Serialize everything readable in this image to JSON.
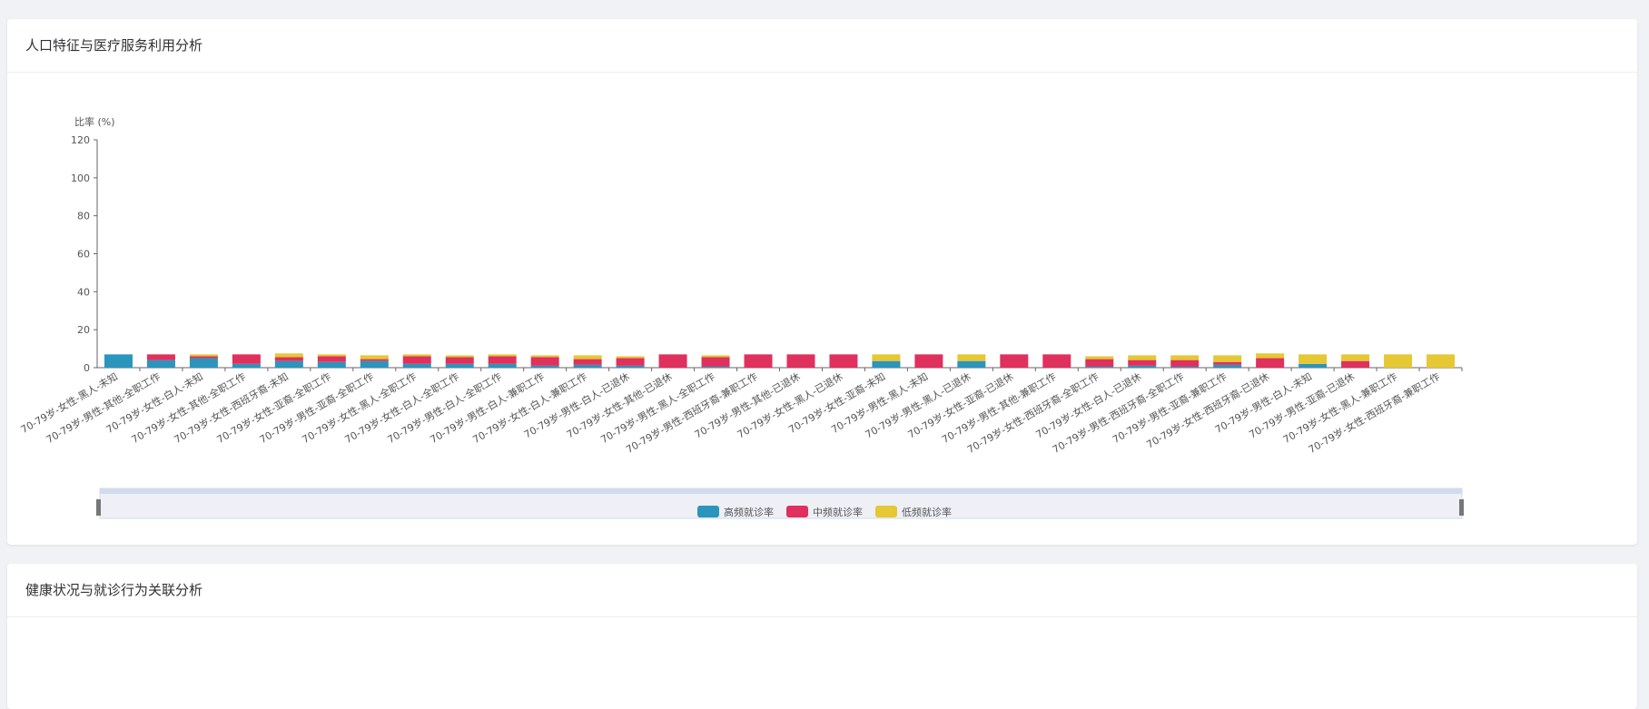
{
  "panels": [
    {
      "title": "人口特征与医疗服务利用分析"
    },
    {
      "title": "健康状况与就诊行为关联分析"
    }
  ],
  "chart_data": {
    "type": "bar",
    "stacked": true,
    "y_axis_label": "比率 (%)",
    "categories": [
      "70-79岁-女性-黑人-未知",
      "70-79岁-男性-其他-全职工作",
      "70-79岁-女性-白人-未知",
      "70-79岁-女性-其他-全职工作",
      "70-79岁-女性-西班牙裔-未知",
      "70-79岁-女性-亚裔-全职工作",
      "70-79岁-男性-亚裔-全职工作",
      "70-79岁-女性-黑人-全职工作",
      "70-79岁-女性-白人-全职工作",
      "70-79岁-男性-白人-全职工作",
      "70-79岁-男性-白人-兼职工作",
      "70-79岁-女性-白人-兼职工作",
      "70-79岁-男性-白人-已退休",
      "70-79岁-女性-其他-已退休",
      "70-79岁-男性-黑人-全职工作",
      "70-79岁-男性-西班牙裔-兼职工作",
      "70-79岁-男性-其他-已退休",
      "70-79岁-女性-黑人-已退休",
      "70-79岁-女性-亚裔-未知",
      "70-79岁-男性-黑人-未知",
      "70-79岁-男性-黑人-已退休",
      "70-79岁-女性-亚裔-已退休",
      "70-79岁-男性-其他-兼职工作",
      "70-79岁-女性-西班牙裔-全职工作",
      "70-79岁-女性-白人-已退休",
      "70-79岁-男性-西班牙裔-全职工作",
      "70-79岁-男性-亚裔-兼职工作",
      "70-79岁-女性-西班牙裔-已退休",
      "70-79岁-男性-白人-未知",
      "70-79岁-男性-亚裔-已退休",
      "70-79岁-女性-黑人-兼职工作",
      "70-79岁-女性-西班牙裔-兼职工作"
    ],
    "series": [
      {
        "name": "高频就诊率",
        "color": "#2b95bd",
        "values": [
          7,
          4,
          5,
          2,
          3.5,
          3,
          3.5,
          2,
          2,
          2,
          1,
          1.5,
          1,
          0,
          0.5,
          0,
          0,
          0,
          3.5,
          0,
          3.5,
          0,
          0,
          0.5,
          1,
          0.5,
          1.5,
          0,
          2,
          0,
          0,
          0
        ]
      },
      {
        "name": "中频就诊率",
        "color": "#e0305e",
        "values": [
          0,
          3,
          1,
          5,
          2,
          3,
          1,
          4,
          3.5,
          4,
          4.5,
          3,
          4,
          7,
          5,
          7,
          7,
          7,
          0,
          7,
          0,
          7,
          7,
          4,
          3,
          3.5,
          1.5,
          5,
          0,
          3.5,
          0,
          0
        ]
      },
      {
        "name": "低频就诊率",
        "color": "#e6c734",
        "values": [
          0,
          0,
          1,
          0,
          2,
          1,
          2,
          1,
          1,
          1,
          1,
          2,
          1,
          0,
          1,
          0,
          0,
          0,
          3.5,
          0,
          3.5,
          0,
          0,
          1.5,
          2.5,
          2.5,
          3.5,
          2.5,
          5,
          3.5,
          7,
          7
        ]
      }
    ],
    "ylim": [
      0,
      120
    ],
    "yticks": [
      0,
      20,
      40,
      60,
      80,
      100,
      120
    ]
  }
}
